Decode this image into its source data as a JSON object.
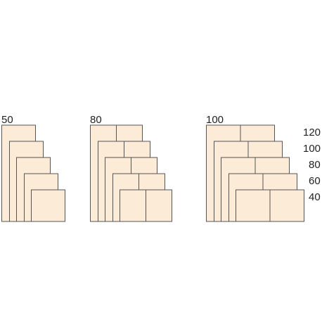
{
  "panels": [
    {
      "id": "panel-50",
      "label": "50"
    },
    {
      "id": "panel-80",
      "label": "80"
    },
    {
      "id": "panel-100",
      "label": "100"
    }
  ],
  "right_labels": [
    "120",
    "100",
    "80",
    "60",
    "40"
  ],
  "colors": {
    "fill": "#fcebd6",
    "stroke": "#555555",
    "text": "#222222"
  }
}
